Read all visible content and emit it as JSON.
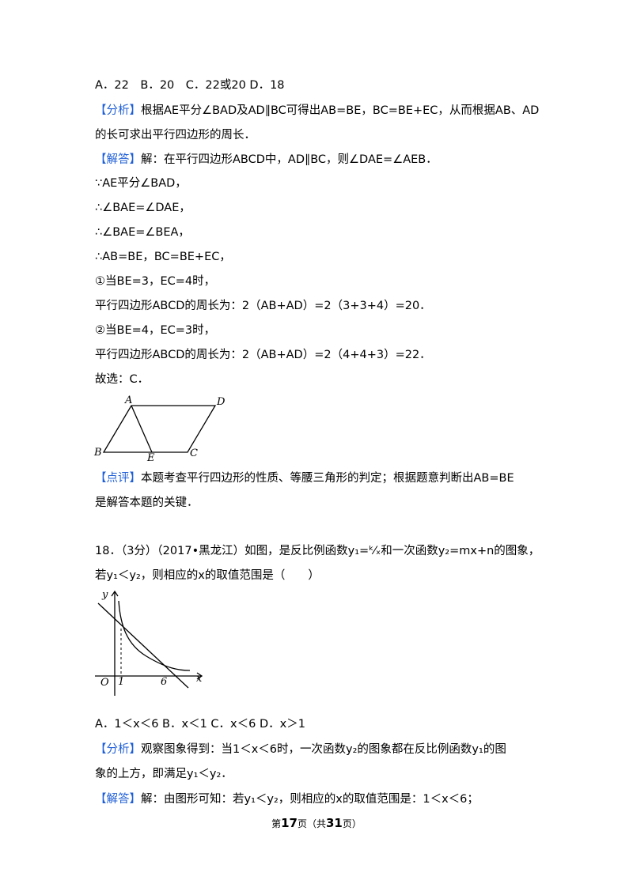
{
  "q17_options": "A．22　B．20　C．22或20 D．18",
  "analysis1": {
    "tag": "【分析】",
    "line1": "根据AE平分∠BAD及AD∥BC可得出AB=BE，BC=BE+EC，从而根据AB、AD",
    "line2": "的长可求出平行四边形的周长．"
  },
  "answer1": {
    "tag": "【解答】",
    "text": "解：在平行四边形ABCD中，AD∥BC，则∠DAE=∠AEB．"
  },
  "steps1": [
    "∵AE平分∠BAD，",
    "∴∠BAE=∠DAE，",
    "∴∠BAE=∠BEA，",
    "∴AB=BE，BC=BE+EC，",
    "①当BE=3，EC=4时，",
    "平行四边形ABCD的周长为：2（AB+AD）=2（3+3+4）=20．",
    "②当BE=4，EC=3时，",
    "平行四边形ABCD的周长为：2（AB+AD）=2（4+4+3）=22．",
    "故选：C．"
  ],
  "figure1": {
    "A": "A",
    "D": "D",
    "B": "B",
    "E": "E",
    "C": "C"
  },
  "comment1": {
    "tag": "【点评】",
    "line1": "本题考查平行四边形的性质、等腰三角形的判定；根据题意判断出AB=BE",
    "line2": "是解答本题的关键．"
  },
  "q18": {
    "line1": "18．（3分）（2017•黑龙江）如图，是反比例函数y₁=ᵏ⁄ₓ和一次函数y₂=mx+n的图象，",
    "line2": "若y₁＜y₂，则相应的x的取值范围是（　　）"
  },
  "figure2": {
    "y": "y",
    "x": "x",
    "O": "O",
    "one": "1",
    "six": "6"
  },
  "q18_options": "A．1＜x＜6 B．x＜1 C．x＜6 D．x＞1",
  "analysis2": {
    "tag": "【分析】",
    "line1": "观察图象得到：当1＜x＜6时，一次函数y₂的图象都在反比例函数y₁的图",
    "line2": "象的上方，即满足y₁＜y₂．"
  },
  "answer2": {
    "tag": "【解答】",
    "text": "解：由图形可知：若y₁＜y₂，则相应的x的取值范围是：1＜x＜6；"
  },
  "footer": {
    "pre": "第",
    "page": "17",
    "mid": "页（共",
    "total": "31",
    "post": "页）"
  }
}
